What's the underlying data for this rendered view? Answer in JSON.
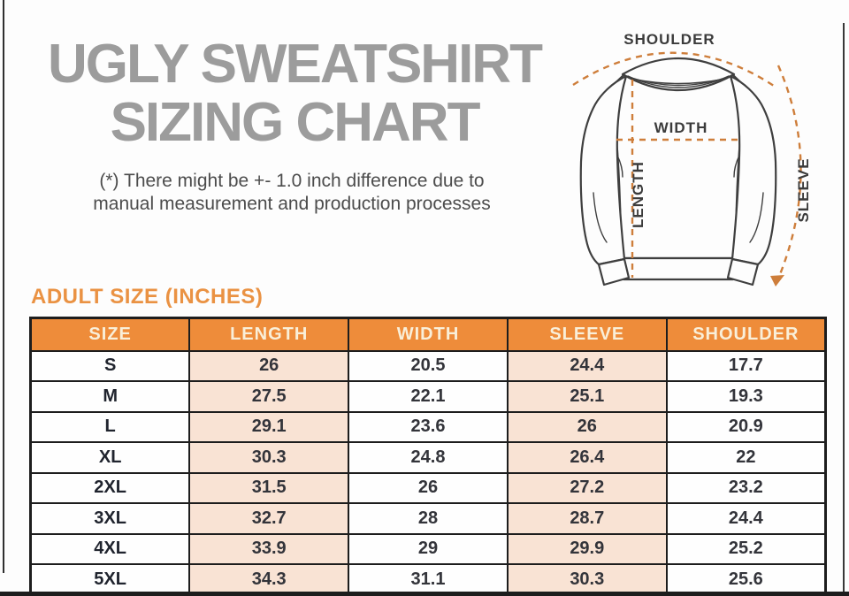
{
  "header": {
    "title_line1": "UGLY SWEATSHIRT",
    "title_line2": "SIZING CHART",
    "disclaimer_line1": "(*) There might be +- 1.0 inch difference due to",
    "disclaimer_line2": "manual measurement and production processes"
  },
  "diagram": {
    "shoulder_label": "SHOULDER",
    "width_label": "WIDTH",
    "length_label": "LENGTH",
    "sleeve_label": "SLEEVE"
  },
  "section_heading": "ADULT SIZE (INCHES)",
  "chart_data": {
    "type": "table",
    "title": "ADULT SIZE (INCHES)",
    "columns": [
      "SIZE",
      "LENGTH",
      "WIDTH",
      "SLEEVE",
      "SHOULDER"
    ],
    "rows": [
      [
        "S",
        "26",
        "20.5",
        "24.4",
        "17.7"
      ],
      [
        "M",
        "27.5",
        "22.1",
        "25.1",
        "19.3"
      ],
      [
        "L",
        "29.1",
        "23.6",
        "26",
        "20.9"
      ],
      [
        "XL",
        "30.3",
        "24.8",
        "26.4",
        "22"
      ],
      [
        "2XL",
        "31.5",
        "26",
        "27.2",
        "23.2"
      ],
      [
        "3XL",
        "32.7",
        "28",
        "28.7",
        "24.4"
      ],
      [
        "4XL",
        "33.9",
        "29",
        "29.9",
        "25.2"
      ],
      [
        "5XL",
        "34.3",
        "31.1",
        "30.3",
        "25.6"
      ]
    ],
    "peach_column_indexes": [
      1,
      3
    ]
  },
  "colors": {
    "header_orange": "#ee8c3a",
    "header_text_cream": "#f9efd9",
    "peach_cell": "#f9e3d4",
    "table_border": "#1d1d1d",
    "title_gray": "#9c9c9c",
    "body_text": "#4c4c4c",
    "accent_heading_orange": "#ea9243",
    "measure_line_orange": "#ce7e3b",
    "outline_gray": "#3f3f3f"
  }
}
